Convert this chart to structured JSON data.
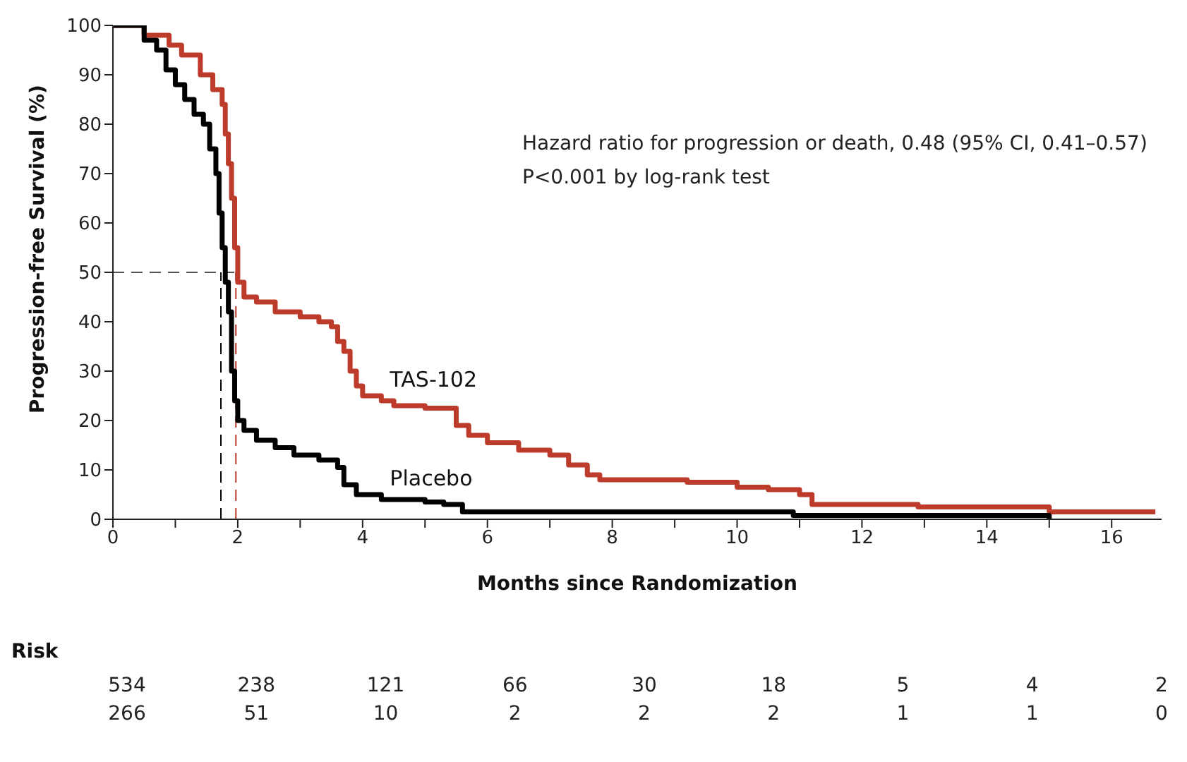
{
  "chart_data": {
    "type": "step",
    "xlabel": "Months since Randomization",
    "ylabel": "Progression-free Survival (%)",
    "xlim": [
      0,
      16.8
    ],
    "xticks": [
      0,
      {
        "value": 1,
        "label": null
      },
      2,
      {
        "value": 3,
        "label": null
      },
      4,
      {
        "value": 5,
        "label": null
      },
      6,
      {
        "value": 7,
        "label": null
      },
      8,
      {
        "value": 9,
        "label": null
      },
      10,
      {
        "value": 11,
        "label": null
      },
      12,
      {
        "value": 13,
        "label": null
      },
      14,
      {
        "value": 15,
        "label": null
      },
      16
    ],
    "ylim": [
      0,
      100
    ],
    "yticks": [
      0,
      10,
      20,
      30,
      40,
      50,
      60,
      70,
      80,
      90,
      100
    ],
    "marker": "none",
    "line_style": "solid",
    "series": [
      {
        "name": "TAS-102",
        "color": "#bd3b2a",
        "x": [
          0,
          0.5,
          0.9,
          1.1,
          1.4,
          1.6,
          1.75,
          1.8,
          1.85,
          1.9,
          1.95,
          2.0,
          2.1,
          2.3,
          2.6,
          3.0,
          3.3,
          3.5,
          3.6,
          3.7,
          3.8,
          3.9,
          4.0,
          4.3,
          4.5,
          5.0,
          5.5,
          5.7,
          6.0,
          6.5,
          7.0,
          7.3,
          7.6,
          7.8,
          9.2,
          10.0,
          10.5,
          11.0,
          11.2,
          12.9,
          15.0,
          16.7
        ],
        "values": [
          100,
          98,
          96,
          94,
          90,
          87,
          84,
          78,
          72,
          65,
          55,
          48,
          45,
          44,
          42,
          41,
          40,
          39,
          36,
          34,
          30,
          27,
          25,
          24,
          23,
          22.5,
          19,
          17,
          15.5,
          14,
          13,
          11,
          9,
          8,
          7.5,
          6.5,
          6,
          5,
          3,
          2.5,
          1.5,
          1.5
        ]
      },
      {
        "name": "Placebo",
        "color": "#000000",
        "x": [
          0,
          0.4,
          0.5,
          0.7,
          0.85,
          1.0,
          1.15,
          1.3,
          1.45,
          1.55,
          1.65,
          1.7,
          1.75,
          1.8,
          1.85,
          1.9,
          1.95,
          2.0,
          2.1,
          2.3,
          2.6,
          2.9,
          3.3,
          3.6,
          3.7,
          3.9,
          4.3,
          5.0,
          5.3,
          5.6,
          10.9,
          15.0
        ],
        "values": [
          100,
          100,
          97,
          95,
          91,
          88,
          85,
          82,
          80,
          75,
          70,
          62,
          55,
          48,
          42,
          30,
          24,
          20,
          18,
          16,
          14.5,
          13,
          12,
          10.5,
          7,
          5,
          4,
          3.5,
          3,
          1.5,
          0.8,
          0
        ]
      }
    ],
    "ref_lines": [
      {
        "axis": "y",
        "value": 50,
        "color": "#555555",
        "line_style": "dashed"
      },
      {
        "axis": "x",
        "value": 1.73,
        "color": "#000000",
        "line_style": "dashed"
      },
      {
        "axis": "x",
        "value": 1.97,
        "color": "#bd3b2a",
        "line_style": "dashed"
      }
    ],
    "annotations": [
      "Hazard ratio for progression or death, 0.48 (95% CI, 0.41–0.57)",
      "P<0.001 by log-rank test",
      "Risk",
      "534 238 121 66 30 18 5 4 2",
      "266 51 10 2 2 2 1 1 0"
    ]
  }
}
